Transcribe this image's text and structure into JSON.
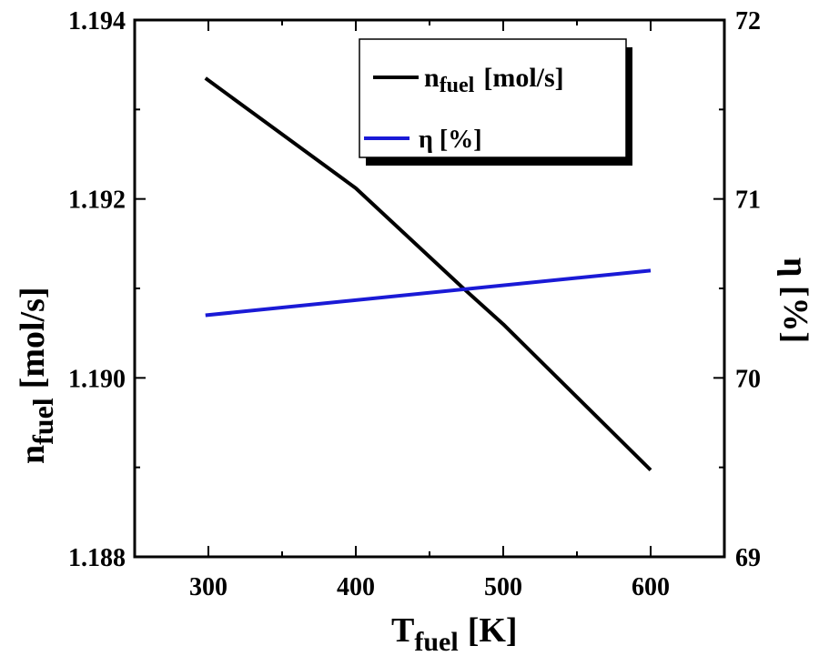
{
  "chart_data": {
    "type": "line",
    "x_axis": {
      "label_main": "T",
      "label_sub": "fuel",
      "label_unit": "[K]",
      "range": [
        250,
        650
      ],
      "ticks": [
        300,
        400,
        500,
        600
      ],
      "tick_labels": [
        "300",
        "400",
        "500",
        "600"
      ]
    },
    "y_left": {
      "label_main": "n",
      "label_sub": "fuel",
      "label_unit": "[mol/s]",
      "range": [
        1.188,
        1.194
      ],
      "ticks": [
        1.188,
        1.19,
        1.192,
        1.194
      ],
      "tick_labels": [
        "1.188",
        "1.190",
        "1.192",
        "1.194"
      ]
    },
    "y_right": {
      "label": "η [%]",
      "range": [
        69,
        72
      ],
      "ticks": [
        69,
        70,
        71,
        72
      ],
      "tick_labels": [
        "69",
        "70",
        "71",
        "72"
      ]
    },
    "series": [
      {
        "name": "nfuel [mol/s]",
        "legend_main": "n",
        "legend_sub": "fuel",
        "legend_unit": "[mol/s]",
        "axis": "left",
        "color": "#000000",
        "x": [
          298,
          400,
          473,
          500,
          600
        ],
        "y": [
          1.19335,
          1.19212,
          1.191,
          1.1906,
          1.18897
        ]
      },
      {
        "name": "η [%]",
        "legend_label": "η [%]",
        "axis": "right",
        "color": "#1a1ad6",
        "x": [
          298,
          600
        ],
        "y": [
          70.35,
          70.6
        ]
      }
    ],
    "legend_position": "top-right",
    "grid": false
  }
}
